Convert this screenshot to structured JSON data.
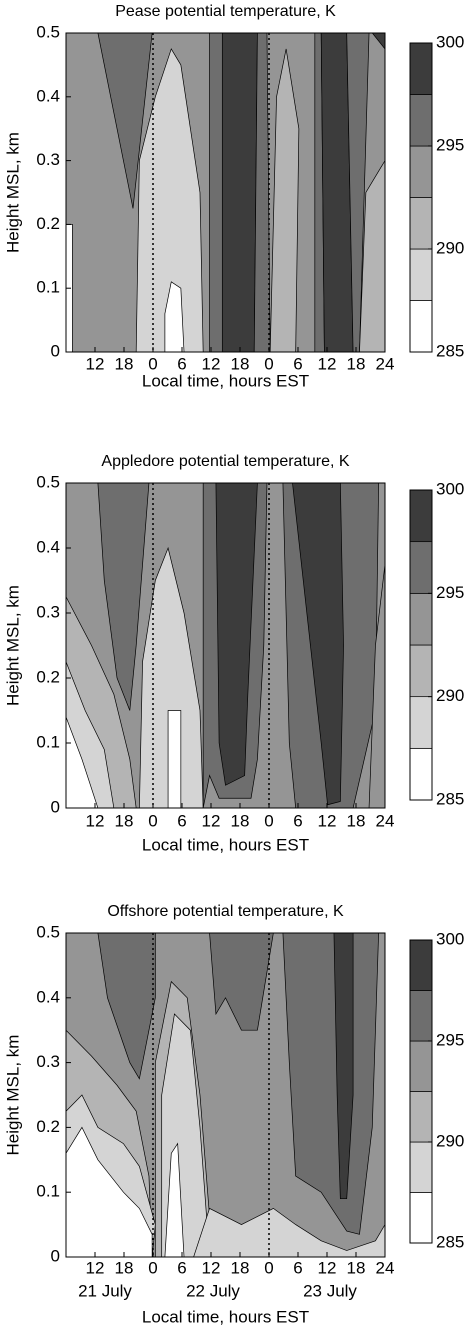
{
  "chart_data": [
    {
      "type": "contour",
      "title": "Pease potential temperature, K",
      "xlabel": "Local time, hours EST",
      "ylabel": "Height MSL, km",
      "xlim": [
        6,
        72
      ],
      "xticks": [
        12,
        18,
        {
          "value": 24,
          "label": "0"
        },
        {
          "value": 30,
          "label": "6"
        },
        {
          "value": 36,
          "label": "12"
        },
        {
          "value": 42,
          "label": "18"
        },
        {
          "value": 48,
          "label": "0"
        },
        {
          "value": 54,
          "label": "6"
        },
        {
          "value": 60,
          "label": "12"
        },
        {
          "value": 66,
          "label": "18"
        },
        {
          "value": 72,
          "label": "24"
        }
      ],
      "ylim": [
        0,
        0.5
      ],
      "yticks": [
        0,
        0.1,
        0.2,
        0.3,
        0.4,
        0.5
      ],
      "colorbar": {
        "levels": [
          285,
          287.5,
          290,
          292.5,
          295,
          297.5,
          300
        ],
        "colors": [
          "#ffffff",
          "#d4d4d4",
          "#b4b4b4",
          "#959595",
          "#6e6e6e",
          "#3c3c3c"
        ],
        "ticks": [
          285,
          290,
          295,
          300
        ]
      }
    },
    {
      "type": "contour",
      "title": "Appledore potential temperature, K",
      "xlabel": "Local time, hours EST",
      "ylabel": "Height MSL, km",
      "xlim": [
        6,
        72
      ],
      "xticks": [
        12,
        18,
        {
          "value": 24,
          "label": "0"
        },
        {
          "value": 30,
          "label": "6"
        },
        {
          "value": 36,
          "label": "12"
        },
        {
          "value": 42,
          "label": "18"
        },
        {
          "value": 48,
          "label": "0"
        },
        {
          "value": 54,
          "label": "6"
        },
        {
          "value": 60,
          "label": "12"
        },
        {
          "value": 66,
          "label": "18"
        },
        {
          "value": 72,
          "label": "24"
        }
      ],
      "ylim": [
        0,
        0.5
      ],
      "yticks": [
        0,
        0.1,
        0.2,
        0.3,
        0.4,
        0.5
      ],
      "colorbar": {
        "levels": [
          285,
          287.5,
          290,
          292.5,
          295,
          297.5,
          300
        ],
        "colors": [
          "#ffffff",
          "#d4d4d4",
          "#b4b4b4",
          "#959595",
          "#6e6e6e",
          "#3c3c3c"
        ],
        "ticks": [
          285,
          290,
          295,
          300
        ]
      }
    },
    {
      "type": "contour",
      "title": "Offshore potential temperature, K",
      "xlabel": "Local time, hours EST",
      "ylabel": "Height MSL, km",
      "xlim": [
        6,
        72
      ],
      "xticks": [
        12,
        18,
        {
          "value": 24,
          "label": "0"
        },
        {
          "value": 30,
          "label": "6"
        },
        {
          "value": 36,
          "label": "12"
        },
        {
          "value": 42,
          "label": "18"
        },
        {
          "value": 48,
          "label": "0"
        },
        {
          "value": 54,
          "label": "6"
        },
        {
          "value": 60,
          "label": "12"
        },
        {
          "value": 66,
          "label": "18"
        },
        {
          "value": 72,
          "label": "24"
        }
      ],
      "ylim": [
        0,
        0.5
      ],
      "yticks": [
        0,
        0.1,
        0.2,
        0.3,
        0.4,
        0.5
      ],
      "annotations": [
        "21 July",
        "22 July",
        "23 July"
      ],
      "colorbar": {
        "levels": [
          285,
          287.5,
          290,
          292.5,
          295,
          297.5,
          300
        ],
        "colors": [
          "#ffffff",
          "#d4d4d4",
          "#b4b4b4",
          "#959595",
          "#6e6e6e",
          "#3c3c3c"
        ],
        "ticks": [
          285,
          290,
          295,
          300
        ]
      }
    }
  ]
}
